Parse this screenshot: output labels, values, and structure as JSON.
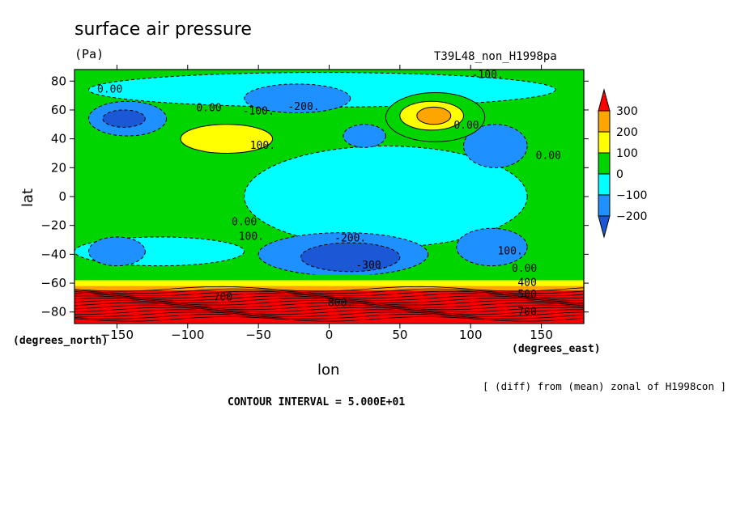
{
  "chart_data": {
    "type": "heatmap",
    "title": "surface air pressure",
    "units": "(Pa)",
    "run_id": "T39L48_non_H1998pa",
    "xlabel": "lon",
    "ylabel": "lat",
    "x_units": "(degrees_east)",
    "y_units": "(degrees_north)",
    "xlim": [
      -180,
      180
    ],
    "ylim": [
      -88,
      88
    ],
    "x_ticks": [
      -150,
      -100,
      -50,
      0,
      50,
      100,
      150
    ],
    "y_ticks": [
      80,
      60,
      40,
      20,
      0,
      -20,
      -40,
      -60,
      -80
    ],
    "colorbar": {
      "labels": [
        "300",
        "200",
        "100",
        "0",
        "−100",
        "−200"
      ],
      "levels": [
        300,
        200,
        100,
        0,
        -100,
        -200
      ],
      "colors": {
        "gt300": "#ff0000",
        "200_300": "#ffa500",
        "100_200": "#ffff00",
        "0_100": "#00d500",
        "m100_0": "#00ffff",
        "m200_m100": "#1e90ff",
        "lt_m200": "#1b58d6"
      }
    },
    "contour_labels": [
      {
        "text": "0.00",
        "lon": -155,
        "lat": 72
      },
      {
        "text": "0.00",
        "lon": -85,
        "lat": 59
      },
      {
        "text": "-100.",
        "lon": -50,
        "lat": 57
      },
      {
        "text": "-200.",
        "lon": -18,
        "lat": 60
      },
      {
        "text": "-100.",
        "lon": 112,
        "lat": 82
      },
      {
        "text": "0.00",
        "lon": 97,
        "lat": 47
      },
      {
        "text": "0.00",
        "lon": 155,
        "lat": 26
      },
      {
        "text": "100.",
        "lon": -47,
        "lat": 33
      },
      {
        "text": "0.00",
        "lon": -60,
        "lat": -20
      },
      {
        "text": "100.",
        "lon": -55,
        "lat": -30
      },
      {
        "text": "-200.",
        "lon": 15,
        "lat": -31
      },
      {
        "text": "-300.",
        "lon": 30,
        "lat": -50
      },
      {
        "text": "100.",
        "lon": 128,
        "lat": -40
      },
      {
        "text": "0.00",
        "lon": 138,
        "lat": -52
      },
      {
        "text": "400",
        "lon": 140,
        "lat": -62
      },
      {
        "text": "500",
        "lon": 140,
        "lat": -70
      },
      {
        "text": "700",
        "lon": 140,
        "lat": -82
      },
      {
        "text": "700",
        "lon": -75,
        "lat": -72
      },
      {
        "text": "800.",
        "lon": 8,
        "lat": -76
      }
    ],
    "fields": {
      "background": "0_100",
      "features": [
        {
          "band": "m100_0",
          "lon": [
            -180,
            -60
          ],
          "lat": [
            -48,
            -28
          ]
        },
        {
          "band": "m100_0",
          "lon": [
            -60,
            140
          ],
          "lat": [
            -35,
            35
          ]
        },
        {
          "band": "m100_0",
          "lon": [
            -170,
            160
          ],
          "lat": [
            62,
            86
          ]
        },
        {
          "band": "m200_m100",
          "lon": [
            -170,
            -115
          ],
          "lat": [
            42,
            66
          ]
        },
        {
          "band": "lt_m200",
          "lon": [
            -160,
            -130
          ],
          "lat": [
            48,
            60
          ]
        },
        {
          "band": "m200_m100",
          "lon": [
            -60,
            15
          ],
          "lat": [
            58,
            78
          ]
        },
        {
          "band": "m200_m100",
          "lon": [
            10,
            40
          ],
          "lat": [
            34,
            50
          ]
        },
        {
          "band": "m200_m100",
          "lon": [
            95,
            140
          ],
          "lat": [
            20,
            50
          ]
        },
        {
          "band": "m200_m100",
          "lon": [
            -170,
            -130
          ],
          "lat": [
            -48,
            -28
          ]
        },
        {
          "band": "m200_m100",
          "lon": [
            -50,
            70
          ],
          "lat": [
            -55,
            -25
          ]
        },
        {
          "band": "lt_m200",
          "lon": [
            -20,
            50
          ],
          "lat": [
            -52,
            -32
          ]
        },
        {
          "band": "m200_m100",
          "lon": [
            90,
            140
          ],
          "lat": [
            -48,
            -22
          ]
        },
        {
          "band": "100_200",
          "lon": [
            -105,
            -40
          ],
          "lat": [
            30,
            50
          ]
        },
        {
          "band": "0_100",
          "lon": [
            40,
            110
          ],
          "lat": [
            38,
            72
          ]
        },
        {
          "band": "100_200",
          "lon": [
            50,
            95
          ],
          "lat": [
            46,
            66
          ]
        },
        {
          "band": "200_300",
          "lon": [
            62,
            86
          ],
          "lat": [
            50,
            62
          ]
        }
      ]
    }
  }
}
